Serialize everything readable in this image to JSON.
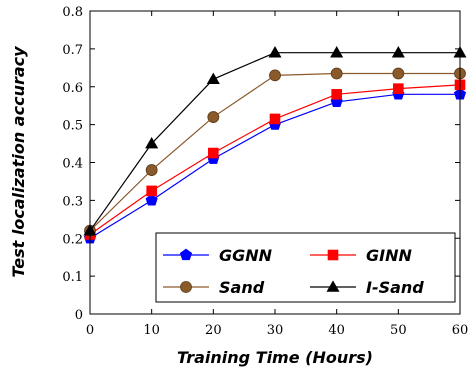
{
  "chart_data": {
    "type": "line",
    "title": "",
    "xlabel": "Training Time (Hours)",
    "ylabel": "Test localization accuracy",
    "x": [
      0,
      10,
      20,
      30,
      40,
      50,
      60
    ],
    "xlim": [
      0,
      60
    ],
    "ylim": [
      0,
      0.8
    ],
    "xticks": [
      "0",
      "10",
      "20",
      "30",
      "40",
      "50",
      "60"
    ],
    "yticks": [
      "0",
      "0.1",
      "0.2",
      "0.3",
      "0.4",
      "0.5",
      "0.6",
      "0.7",
      "0.8"
    ],
    "grid": false,
    "legend_position": "bottom-right",
    "series": [
      {
        "name": "GGNN",
        "marker": "pentagon",
        "color": "#0000ff",
        "values": [
          0.2,
          0.3,
          0.41,
          0.5,
          0.56,
          0.58,
          0.58
        ]
      },
      {
        "name": "GINN",
        "marker": "square",
        "color": "#ff0000",
        "values": [
          0.21,
          0.325,
          0.425,
          0.515,
          0.58,
          0.595,
          0.605
        ]
      },
      {
        "name": "Sand",
        "marker": "circle",
        "color": "#8b5a2b",
        "values": [
          0.22,
          0.38,
          0.52,
          0.63,
          0.635,
          0.635,
          0.635
        ]
      },
      {
        "name": "I-Sand",
        "marker": "triangle",
        "color": "#000000",
        "values": [
          0.22,
          0.45,
          0.62,
          0.69,
          0.69,
          0.69,
          0.69
        ]
      }
    ]
  }
}
